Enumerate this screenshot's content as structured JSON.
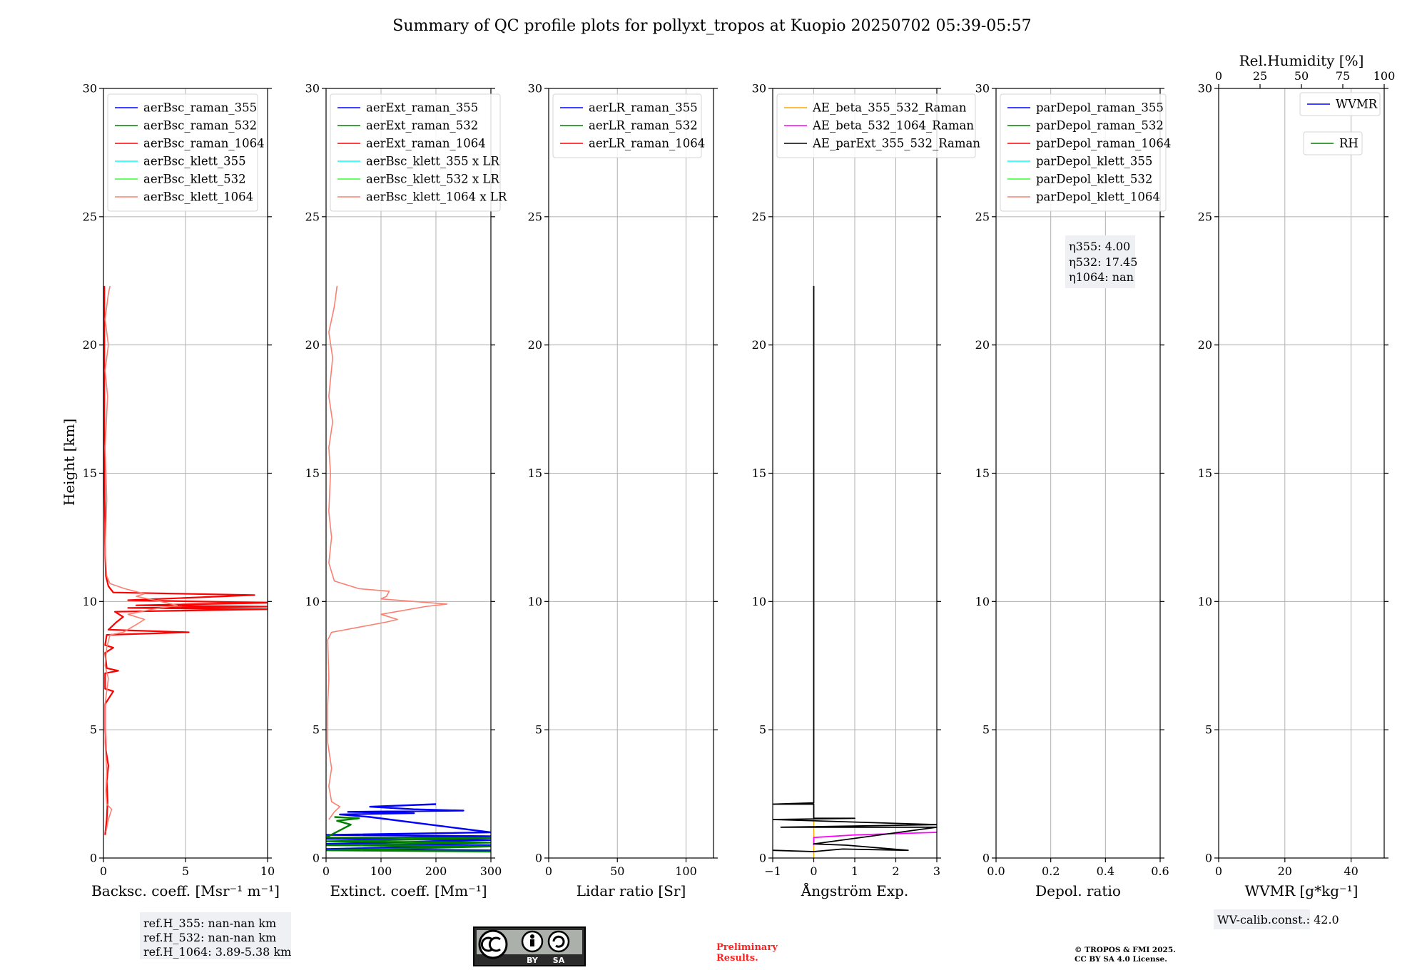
{
  "figure": {
    "title": "Summary of QC profile plots for pollyxt_tropos at Kuopio 20250702 05:39-05:57",
    "ylabel": "Height [km]",
    "ylim": [
      0,
      30
    ],
    "yticks": [
      "0",
      "5",
      "10",
      "15",
      "20",
      "25",
      "30"
    ]
  },
  "chart_data": [
    {
      "type": "line",
      "id": "bsc",
      "xlabel": "Backsc. coeff. [Msr⁻¹ m⁻¹]",
      "xlim": [
        0,
        10
      ],
      "xticks": [
        0,
        5,
        10
      ],
      "legend": [
        {
          "name": "aerBsc_raman_355",
          "color": "#0000ff"
        },
        {
          "name": "aerBsc_raman_532",
          "color": "#008000"
        },
        {
          "name": "aerBsc_raman_1064",
          "color": "#ff0000"
        },
        {
          "name": "aerBsc_klett_355",
          "color": "#00ffff"
        },
        {
          "name": "aerBsc_klett_532",
          "color": "#33ff33"
        },
        {
          "name": "aerBsc_klett_1064",
          "color": "#fa8072"
        }
      ],
      "series": [
        {
          "name": "aerBsc_raman_1064",
          "color": "#ff0000",
          "width": 2.2,
          "points": [
            [
              0.1,
              0.9
            ],
            [
              0.2,
              1.5
            ],
            [
              0.25,
              2.2
            ],
            [
              0.2,
              3
            ],
            [
              0.3,
              3.6
            ],
            [
              0.15,
              4.2
            ],
            [
              0.1,
              5
            ],
            [
              0.1,
              6
            ],
            [
              0.6,
              6.5
            ],
            [
              0.1,
              6.6
            ],
            [
              0.1,
              7.2
            ],
            [
              0.9,
              7.3
            ],
            [
              0.2,
              7.4
            ],
            [
              0.1,
              8
            ],
            [
              0.6,
              8.2
            ],
            [
              0.1,
              8.3
            ],
            [
              0.2,
              8.7
            ],
            [
              5.2,
              8.8
            ],
            [
              0.3,
              8.9
            ],
            [
              0.8,
              9.2
            ],
            [
              1.2,
              9.4
            ],
            [
              0.7,
              9.6
            ],
            [
              10,
              9.7
            ],
            [
              1.5,
              9.75
            ],
            [
              10,
              9.8
            ],
            [
              2.0,
              9.85
            ],
            [
              10,
              9.95
            ],
            [
              1.5,
              10.05
            ],
            [
              9.2,
              10.25
            ],
            [
              0.6,
              10.35
            ],
            [
              0.3,
              10.6
            ],
            [
              0.15,
              11
            ],
            [
              0.1,
              12
            ],
            [
              0.1,
              13
            ],
            [
              0.05,
              15
            ],
            [
              0.05,
              18
            ],
            [
              0.05,
              20
            ],
            [
              0.05,
              22.3
            ]
          ]
        },
        {
          "name": "aerBsc_klett_1064",
          "color": "#fa8072",
          "width": 1.6,
          "points": [
            [
              0.15,
              1.0
            ],
            [
              0.3,
              1.5
            ],
            [
              0.5,
              1.9
            ],
            [
              0.2,
              2.1
            ],
            [
              0.15,
              2.6
            ],
            [
              0.2,
              3.4
            ],
            [
              0.1,
              4.5
            ],
            [
              0.1,
              6
            ],
            [
              0.3,
              7.0
            ],
            [
              0.1,
              7.5
            ],
            [
              0.2,
              8.2
            ],
            [
              0.4,
              8.7
            ],
            [
              1.2,
              8.8
            ],
            [
              2.0,
              9.1
            ],
            [
              2.5,
              9.3
            ],
            [
              1.5,
              9.5
            ],
            [
              3.0,
              9.7
            ],
            [
              4.5,
              9.85
            ],
            [
              3.5,
              10.0
            ],
            [
              2.0,
              10.2
            ],
            [
              2.5,
              10.3
            ],
            [
              1.3,
              10.5
            ],
            [
              0.4,
              10.7
            ],
            [
              0.2,
              11
            ],
            [
              0.1,
              12
            ],
            [
              0.2,
              14
            ],
            [
              0.1,
              16
            ],
            [
              0.25,
              18
            ],
            [
              0.1,
              19
            ],
            [
              0.3,
              20
            ],
            [
              0.1,
              21
            ],
            [
              0.3,
              22
            ],
            [
              0.4,
              22.3
            ]
          ]
        }
      ],
      "annotation": [
        "ref.H_355: nan-nan km",
        "ref.H_532: nan-nan km",
        "ref.H_1064: 3.89-5.38 km"
      ]
    },
    {
      "type": "line",
      "id": "ext",
      "xlabel": "Extinct. coeff. [Mm⁻¹]",
      "xlim": [
        0,
        300
      ],
      "xticks": [
        0,
        100,
        200,
        300
      ],
      "legend": [
        {
          "name": "aerExt_raman_355",
          "color": "#0000ff"
        },
        {
          "name": "aerExt_raman_532",
          "color": "#008000"
        },
        {
          "name": "aerExt_raman_1064",
          "color": "#ff0000"
        },
        {
          "name": "aerBsc_klett_355 x LR",
          "color": "#00ffff"
        },
        {
          "name": "aerBsc_klett_532 x LR",
          "color": "#33ff33"
        },
        {
          "name": "aerBsc_klett_1064 x LR",
          "color": "#fa8072"
        }
      ],
      "series": [
        {
          "name": "aerExt_raman_355",
          "color": "#0000ff",
          "width": 2.4,
          "points": [
            [
              300,
              0.3
            ],
            [
              0,
              0.35
            ],
            [
              300,
              0.5
            ],
            [
              0,
              0.55
            ],
            [
              300,
              0.7
            ],
            [
              0,
              0.75
            ],
            [
              300,
              0.85
            ],
            [
              0,
              0.9
            ],
            [
              300,
              1.0
            ],
            [
              80,
              1.6
            ],
            [
              25,
              1.7
            ],
            [
              160,
              1.75
            ],
            [
              40,
              1.8
            ],
            [
              250,
              1.85
            ],
            [
              160,
              1.9
            ],
            [
              80,
              2.0
            ],
            [
              200,
              2.1
            ]
          ]
        },
        {
          "name": "aerExt_raman_532",
          "color": "#008000",
          "width": 2.4,
          "points": [
            [
              300,
              0.25
            ],
            [
              0,
              0.3
            ],
            [
              300,
              0.45
            ],
            [
              0,
              0.5
            ],
            [
              300,
              0.6
            ],
            [
              0,
              0.65
            ],
            [
              300,
              0.78
            ],
            [
              0,
              0.8
            ],
            [
              45,
              1.3
            ],
            [
              20,
              1.45
            ],
            [
              60,
              1.55
            ],
            [
              15,
              1.6
            ]
          ]
        },
        {
          "name": "aerBsc_klett_1064 x LR",
          "color": "#fa8072",
          "width": 1.6,
          "points": [
            [
              5,
              1.5
            ],
            [
              15,
              1.8
            ],
            [
              25,
              2.0
            ],
            [
              10,
              2.2
            ],
            [
              5,
              2.8
            ],
            [
              10,
              3.5
            ],
            [
              3,
              4.5
            ],
            [
              3,
              6
            ],
            [
              5,
              7
            ],
            [
              3,
              8.5
            ],
            [
              10,
              8.8
            ],
            [
              60,
              9.0
            ],
            [
              110,
              9.2
            ],
            [
              130,
              9.3
            ],
            [
              100,
              9.5
            ],
            [
              180,
              9.8
            ],
            [
              220,
              9.9
            ],
            [
              160,
              10.0
            ],
            [
              100,
              10.1
            ],
            [
              110,
              10.2
            ],
            [
              115,
              10.4
            ],
            [
              60,
              10.5
            ],
            [
              15,
              10.8
            ],
            [
              5,
              11.5
            ],
            [
              10,
              12.5
            ],
            [
              5,
              13.5
            ],
            [
              8,
              15
            ],
            [
              5,
              16
            ],
            [
              12,
              17
            ],
            [
              5,
              18
            ],
            [
              12,
              19.5
            ],
            [
              5,
              20.5
            ],
            [
              15,
              21.5
            ],
            [
              20,
              22.3
            ]
          ]
        }
      ]
    },
    {
      "type": "line",
      "id": "lr",
      "xlabel": "Lidar ratio [Sr]",
      "xlim": [
        0,
        120
      ],
      "xticks": [
        0,
        50,
        100
      ],
      "legend": [
        {
          "name": "aerLR_raman_355",
          "color": "#0000ff"
        },
        {
          "name": "aerLR_raman_532",
          "color": "#008000"
        },
        {
          "name": "aerLR_raman_1064",
          "color": "#ff0000"
        }
      ],
      "series": []
    },
    {
      "type": "line",
      "id": "ae",
      "xlabel": "Ångström Exp.",
      "xlim": [
        -1,
        3
      ],
      "xticks": [
        -1,
        0,
        1,
        2,
        3
      ],
      "legend": [
        {
          "name": "AE_beta_355_532_Raman",
          "color": "#ffa500"
        },
        {
          "name": "AE_beta_532_1064_Raman",
          "color": "#ff00ff"
        },
        {
          "name": "AE_parExt_355_532_Raman",
          "color": "#000000"
        }
      ],
      "series": [
        {
          "name": "AE_beta_355_532_Raman",
          "color": "#ffa500",
          "width": 1.3,
          "points": [
            [
              0,
              0
            ],
            [
              0,
              22.3
            ]
          ]
        },
        {
          "name": "AE_beta_532_1064_Raman",
          "color": "#ff00ff",
          "width": 1.8,
          "points": [
            [
              0,
              0.5
            ],
            [
              0,
              0.8
            ],
            [
              1.0,
              0.9
            ],
            [
              3,
              1.0
            ]
          ]
        },
        {
          "name": "AE_parExt_355_532_Raman",
          "color": "#000000",
          "width": 1.8,
          "points": [
            [
              -1,
              0.3
            ],
            [
              0,
              0.25
            ],
            [
              0.7,
              0.35
            ],
            [
              2.3,
              0.3
            ],
            [
              0.8,
              0.5
            ],
            [
              0,
              0.55
            ],
            [
              3,
              1.2
            ],
            [
              -0.8,
              1.2
            ],
            [
              3,
              1.3
            ],
            [
              -1,
              1.5
            ],
            [
              1,
              1.55
            ],
            [
              0,
              1.55
            ],
            [
              0,
              2.1
            ],
            [
              -1,
              2.1
            ],
            [
              0,
              2.15
            ],
            [
              0,
              22.3
            ]
          ]
        }
      ]
    },
    {
      "type": "line",
      "id": "depol",
      "xlabel": "Depol. ratio",
      "xlim": [
        0,
        0.6
      ],
      "xticks": [
        "0.0",
        "0.2",
        "0.4",
        "0.6"
      ],
      "legend": [
        {
          "name": "parDepol_raman_355",
          "color": "#0000ff"
        },
        {
          "name": "parDepol_raman_532",
          "color": "#008000"
        },
        {
          "name": "parDepol_raman_1064",
          "color": "#ff0000"
        },
        {
          "name": "parDepol_klett_355",
          "color": "#00ffff"
        },
        {
          "name": "parDepol_klett_532",
          "color": "#33ff33"
        },
        {
          "name": "parDepol_klett_1064",
          "color": "#fa8072"
        }
      ],
      "series": [],
      "annotation": [
        "η355: 4.00",
        "η532: 17.45",
        "η1064: nan"
      ]
    },
    {
      "type": "line",
      "id": "wv",
      "xlabel": "WVMR [g*kg⁻¹]",
      "xlim": [
        0,
        50
      ],
      "xticks": [
        0,
        20,
        40
      ],
      "top_xlabel": "Rel.Humidity [%]",
      "top_xticks": [
        0,
        25,
        50,
        75,
        100
      ],
      "legend": [
        {
          "name": "WVMR",
          "color": "#0000ff"
        },
        {
          "name": "RH",
          "color": "#008000"
        }
      ],
      "series": [],
      "annotation": [
        "WV-calib.const.: 42.0"
      ]
    }
  ],
  "footer": {
    "license_badge": [
      "BY",
      "SA"
    ],
    "preliminary": [
      "Preliminary",
      "Results."
    ],
    "copyright": [
      "© TROPOS & FMI 2025.",
      "CC BY SA 4.0 License."
    ],
    "colors": {
      "preliminary": "#ff2020"
    }
  }
}
